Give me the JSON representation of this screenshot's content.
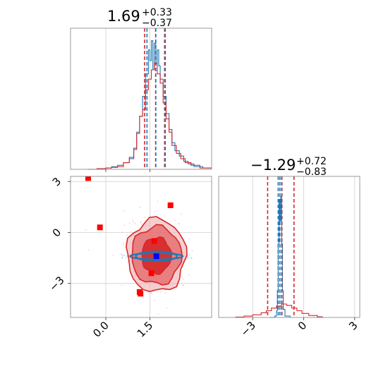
{
  "chart_data": {
    "type": "corner",
    "colors": {
      "blue": "#1f77b4",
      "red": "#d62728",
      "grid": "#cfcfcf",
      "frame": "#7f7f7f"
    },
    "panels": [
      {
        "id": "param1-marginal",
        "type": "histogram",
        "title": {
          "median": "1.69",
          "upper": "+0.33",
          "lower": "−0.37"
        },
        "xlim": [
          -1.2,
          3.6
        ],
        "grid": true,
        "x_gridlines": [
          0.0,
          1.5
        ],
        "series": [
          {
            "name": "",
            "color": "#1f77b4",
            "quantiles": [
              1.4,
              1.7,
              2.0
            ],
            "hist": [
              [
                -0.6,
                0
              ],
              [
                -0.3,
                0.005
              ],
              [
                0.0,
                0.01
              ],
              [
                0.2,
                0.02
              ],
              [
                0.4,
                0.03
              ],
              [
                0.6,
                0.05
              ],
              [
                0.8,
                0.08
              ],
              [
                0.95,
                0.16
              ],
              [
                1.05,
                0.28
              ],
              [
                1.15,
                0.4
              ],
              [
                1.25,
                0.55
              ],
              [
                1.35,
                0.72
              ],
              [
                1.45,
                0.9
              ],
              [
                1.5,
                0.82
              ],
              [
                1.55,
                0.97
              ],
              [
                1.6,
                0.75
              ],
              [
                1.65,
                0.95
              ],
              [
                1.7,
                0.8
              ],
              [
                1.75,
                0.9
              ],
              [
                1.8,
                0.78
              ],
              [
                1.85,
                0.68
              ],
              [
                1.95,
                0.55
              ],
              [
                2.05,
                0.42
              ],
              [
                2.15,
                0.3
              ],
              [
                2.25,
                0.2
              ],
              [
                2.35,
                0.14
              ],
              [
                2.5,
                0.1
              ],
              [
                2.65,
                0.06
              ],
              [
                2.8,
                0.04
              ],
              [
                3.0,
                0.02
              ],
              [
                3.3,
                0.01
              ]
            ]
          },
          {
            "name": "",
            "color": "#d62728",
            "quantiles": [
              1.32,
              1.69,
              2.02
            ],
            "hist": [
              [
                -0.6,
                0
              ],
              [
                -0.3,
                0.005
              ],
              [
                0.0,
                0.01
              ],
              [
                0.2,
                0.015
              ],
              [
                0.4,
                0.02
              ],
              [
                0.6,
                0.05
              ],
              [
                0.8,
                0.09
              ],
              [
                0.95,
                0.15
              ],
              [
                1.05,
                0.27
              ],
              [
                1.15,
                0.4
              ],
              [
                1.25,
                0.45
              ],
              [
                1.35,
                0.6
              ],
              [
                1.45,
                0.68
              ],
              [
                1.55,
                0.75
              ],
              [
                1.65,
                0.8
              ],
              [
                1.75,
                0.72
              ],
              [
                1.85,
                0.65
              ],
              [
                1.95,
                0.5
              ],
              [
                2.05,
                0.38
              ],
              [
                2.15,
                0.28
              ],
              [
                2.25,
                0.18
              ],
              [
                2.4,
                0.12
              ],
              [
                2.55,
                0.08
              ],
              [
                2.7,
                0.05
              ],
              [
                2.9,
                0.03
              ],
              [
                3.2,
                0.01
              ]
            ]
          }
        ]
      },
      {
        "id": "joint",
        "type": "scatter-contour",
        "xlim": [
          -1.2,
          3.6
        ],
        "ylim": [
          -5.0,
          3.3
        ],
        "grid": true,
        "x_ticks": [
          "0.0",
          "1.5"
        ],
        "x_tick_values": [
          0.0,
          1.5
        ],
        "y_ticks": [
          "3",
          "0",
          "−3"
        ],
        "y_tick_values": [
          3,
          0,
          -3
        ],
        "red_points": [
          [
            -0.6,
            3.2
          ],
          [
            -0.2,
            0.3
          ],
          [
            1.65,
            -0.5
          ],
          [
            1.55,
            -2.4
          ],
          [
            2.2,
            1.6
          ],
          [
            1.15,
            -3.5
          ],
          [
            1.18,
            -3.6
          ]
        ],
        "blue_points": [
          [
            1.72,
            -1.4
          ]
        ],
        "red_contours": [
          {
            "cx": 1.72,
            "cy": -1.35,
            "rx": 0.5,
            "ry": 1.05,
            "fill": "#d62728",
            "opacity": 0.9
          },
          {
            "cx": 1.72,
            "cy": -1.35,
            "rx": 0.85,
            "ry": 1.7,
            "fill": "#e36467",
            "opacity": 0.75
          },
          {
            "cx": 1.72,
            "cy": -1.35,
            "rx": 1.0,
            "ry": 2.15,
            "fill": "#f2aeb0",
            "opacity": 0.6
          }
        ],
        "blue_contours": [
          {
            "cx": 1.72,
            "cy": -1.4,
            "rx": 0.7,
            "ry": 0.28
          },
          {
            "cx": 1.72,
            "cy": -1.4,
            "rx": 0.9,
            "ry": 0.18
          }
        ]
      },
      {
        "id": "param2-marginal",
        "type": "histogram",
        "title": {
          "median": "−1.29",
          "upper": "+0.72",
          "lower": "−0.83"
        },
        "xlim": [
          -5.0,
          3.3
        ],
        "grid": true,
        "x_ticks": [
          "−3",
          "0",
          "3"
        ],
        "x_tick_values": [
          -3,
          0,
          3
        ],
        "series": [
          {
            "name": "",
            "color": "#1f77b4",
            "quantiles": [
              -1.5,
              -1.4,
              -1.28
            ],
            "hist": [
              [
                -2.0,
                0
              ],
              [
                -1.7,
                0.01
              ],
              [
                -1.6,
                0.05
              ],
              [
                -1.55,
                0.2
              ],
              [
                -1.5,
                0.55
              ],
              [
                -1.45,
                0.88
              ],
              [
                -1.4,
                0.72
              ],
              [
                -1.35,
                0.9
              ],
              [
                -1.3,
                0.55
              ],
              [
                -1.25,
                0.2
              ],
              [
                -1.2,
                0.06
              ],
              [
                -1.1,
                0.01
              ]
            ]
          },
          {
            "name": "",
            "color": "#d62728",
            "quantiles": [
              -2.12,
              -1.29,
              -0.57
            ],
            "hist": [
              [
                -4.0,
                0.003
              ],
              [
                -3.5,
                0.01
              ],
              [
                -3.0,
                0.02
              ],
              [
                -2.5,
                0.035
              ],
              [
                -2.2,
                0.05
              ],
              [
                -1.9,
                0.07
              ],
              [
                -1.6,
                0.085
              ],
              [
                -1.3,
                0.1
              ],
              [
                -1.0,
                0.09
              ],
              [
                -0.7,
                0.07
              ],
              [
                -0.4,
                0.05
              ],
              [
                -0.1,
                0.03
              ],
              [
                0.3,
                0.015
              ],
              [
                0.8,
                0.005
              ]
            ]
          }
        ]
      }
    ]
  }
}
